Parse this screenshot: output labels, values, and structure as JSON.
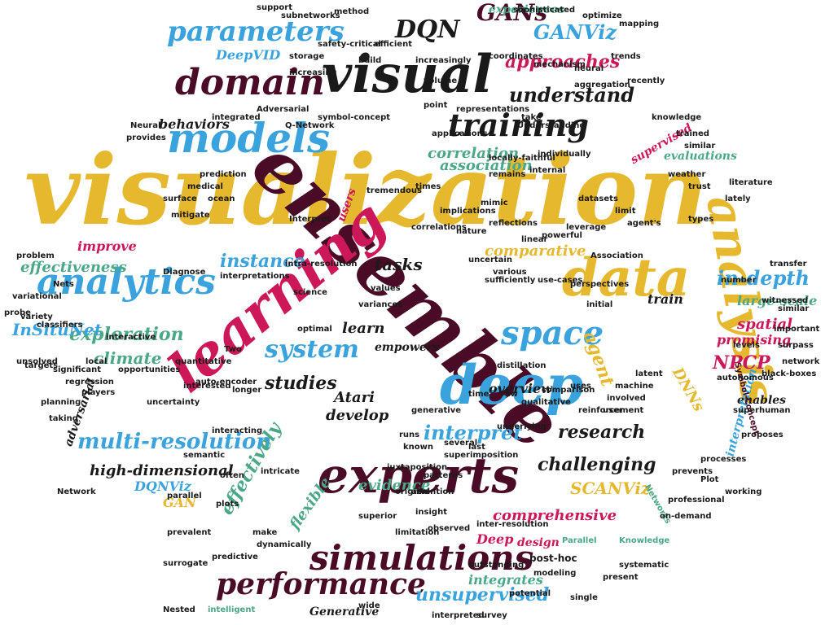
{
  "palette": {
    "gold": "#e6b82e",
    "blue": "#3aa3dd",
    "maroon": "#4a0b26",
    "crimson": "#cc1758",
    "green": "#4aa886",
    "black": "#1a1a1a",
    "olive": "#6b5a12"
  },
  "words": [
    {
      "text": "visualization"
    },
    {
      "text": "ensemble"
    },
    {
      "text": "learning"
    },
    {
      "text": "experts"
    },
    {
      "text": "deep"
    },
    {
      "text": "visual"
    },
    {
      "text": "data"
    },
    {
      "text": "analysis"
    },
    {
      "text": "simulations"
    },
    {
      "text": "models"
    },
    {
      "text": "analytics"
    },
    {
      "text": "domain"
    },
    {
      "text": "performance"
    },
    {
      "text": "parameters"
    },
    {
      "text": "training"
    },
    {
      "text": "space"
    },
    {
      "text": "system"
    },
    {
      "text": "multi-resolution"
    },
    {
      "text": "exploration"
    },
    {
      "text": "instance"
    },
    {
      "text": "understand"
    },
    {
      "text": "studies"
    },
    {
      "text": "interpret"
    },
    {
      "text": "in-depth"
    },
    {
      "text": "DQN"
    },
    {
      "text": "GANs"
    },
    {
      "text": "GANViz"
    },
    {
      "text": "approaches"
    },
    {
      "text": "InSituNet"
    },
    {
      "text": "effectiveness"
    },
    {
      "text": "tasks"
    },
    {
      "text": "research"
    },
    {
      "text": "challenging"
    },
    {
      "text": "behaviors"
    },
    {
      "text": "correlation"
    },
    {
      "text": "association"
    },
    {
      "text": "climate"
    },
    {
      "text": "agent"
    },
    {
      "text": "NPCP"
    },
    {
      "text": "spatial"
    },
    {
      "text": "learn"
    },
    {
      "text": "overview"
    },
    {
      "text": "unsupervised"
    },
    {
      "text": "comprehensive"
    },
    {
      "text": "effectively"
    },
    {
      "text": "evidence"
    },
    {
      "text": "flexible"
    },
    {
      "text": "integrates"
    },
    {
      "text": "SCANViz"
    },
    {
      "text": "high-dimensional"
    },
    {
      "text": "develop"
    },
    {
      "text": "large-scale"
    },
    {
      "text": "promising"
    },
    {
      "text": "supervised"
    },
    {
      "text": "experiences"
    },
    {
      "text": "DQNViz"
    },
    {
      "text": "Atari"
    },
    {
      "text": "adversarial"
    },
    {
      "text": "DNNs"
    },
    {
      "text": "evaluations"
    },
    {
      "text": "enables"
    },
    {
      "text": "empowers"
    },
    {
      "text": "improve"
    },
    {
      "text": "comparative"
    },
    {
      "text": "train"
    },
    {
      "text": "Deep"
    },
    {
      "text": "design"
    },
    {
      "text": "Generative"
    },
    {
      "text": "GAN"
    },
    {
      "text": "interpretation"
    },
    {
      "text": "DeepVID"
    },
    {
      "text": "users"
    },
    {
      "text": "Symbol-Concept"
    },
    {
      "text": "post-hoc"
    },
    {
      "text": "surrogate"
    },
    {
      "text": "Knowledge"
    },
    {
      "text": "Parallel"
    },
    {
      "text": "Networks"
    },
    {
      "text": "Network"
    },
    {
      "text": "wide"
    },
    {
      "text": "Nested"
    },
    {
      "text": "intelligent"
    },
    {
      "text": "interpreted"
    },
    {
      "text": "survey"
    },
    {
      "text": "single"
    },
    {
      "text": "potential"
    },
    {
      "text": "outstanding"
    },
    {
      "text": "modeling"
    },
    {
      "text": "systematic"
    },
    {
      "text": "present"
    },
    {
      "text": "on-demand"
    },
    {
      "text": "working"
    },
    {
      "text": "superior"
    },
    {
      "text": "juxtaposition"
    },
    {
      "text": "superimposition"
    },
    {
      "text": "patterns"
    },
    {
      "text": "original"
    },
    {
      "text": "attention"
    },
    {
      "text": "plots"
    },
    {
      "text": "semantic"
    },
    {
      "text": "parallel"
    },
    {
      "text": "prevalent"
    },
    {
      "text": "planning"
    },
    {
      "text": "players"
    },
    {
      "text": "taking"
    },
    {
      "text": "regression"
    },
    {
      "text": "significant"
    },
    {
      "text": "targets"
    },
    {
      "text": "probe"
    },
    {
      "text": "variety"
    },
    {
      "text": "classifiers"
    },
    {
      "text": "local"
    },
    {
      "text": "interactive"
    },
    {
      "text": "Diagnose"
    },
    {
      "text": "interpretations"
    },
    {
      "text": "intra-resolution"
    },
    {
      "text": "science"
    },
    {
      "text": "values"
    },
    {
      "text": "variances"
    },
    {
      "text": "uncertain"
    },
    {
      "text": "various"
    },
    {
      "text": "use-cases"
    },
    {
      "text": "sufficiently"
    },
    {
      "text": "Association"
    },
    {
      "text": "perspectives"
    },
    {
      "text": "initial"
    },
    {
      "text": "number"
    },
    {
      "text": "transfer"
    },
    {
      "text": "witnessed"
    },
    {
      "text": "similar"
    },
    {
      "text": "important"
    },
    {
      "text": "surpass"
    },
    {
      "text": "levels"
    },
    {
      "text": "network"
    },
    {
      "text": "black-boxes"
    },
    {
      "text": "autonomous"
    },
    {
      "text": "superhuman"
    },
    {
      "text": "proposes"
    },
    {
      "text": "processes"
    },
    {
      "text": "Plot"
    },
    {
      "text": "professional"
    },
    {
      "text": "prevents"
    },
    {
      "text": "machine"
    },
    {
      "text": "involved"
    },
    {
      "text": "user"
    },
    {
      "text": "uses"
    },
    {
      "text": "comparison"
    },
    {
      "text": "distillation"
    },
    {
      "text": "inter-resolution"
    },
    {
      "text": "dynamically"
    },
    {
      "text": "make"
    },
    {
      "text": "runs"
    },
    {
      "text": "limitation"
    },
    {
      "text": "insight"
    },
    {
      "text": "predictive"
    },
    {
      "text": "often"
    },
    {
      "text": "interacting"
    },
    {
      "text": "longer"
    },
    {
      "text": "unsolved"
    },
    {
      "text": "opportunities"
    },
    {
      "text": "uncertainty"
    },
    {
      "text": "intricate"
    },
    {
      "text": "optimal"
    },
    {
      "text": "interested"
    },
    {
      "text": "quantitative"
    },
    {
      "text": "qualitative"
    },
    {
      "text": "auto-encoder"
    },
    {
      "text": "Two"
    },
    {
      "text": "reinforcement"
    },
    {
      "text": "latent"
    },
    {
      "text": "generative"
    },
    {
      "text": "several"
    },
    {
      "text": "known"
    },
    {
      "text": "underlying"
    },
    {
      "text": "time"
    },
    {
      "text": "raw"
    },
    {
      "text": "observed"
    },
    {
      "text": "last"
    },
    {
      "text": "Interpret"
    },
    {
      "text": "tremendous"
    },
    {
      "text": "correlations"
    },
    {
      "text": "implications"
    },
    {
      "text": "nature"
    },
    {
      "text": "reflections"
    },
    {
      "text": "linear"
    },
    {
      "text": "powerful"
    },
    {
      "text": "leverage"
    },
    {
      "text": "mimic"
    },
    {
      "text": "internal"
    },
    {
      "text": "remains"
    },
    {
      "text": "datasets"
    },
    {
      "text": "limit"
    },
    {
      "text": "agent's"
    },
    {
      "text": "types"
    },
    {
      "text": "lately"
    },
    {
      "text": "literature"
    },
    {
      "text": "weather"
    },
    {
      "text": "trust"
    },
    {
      "text": "individually"
    },
    {
      "text": "trained"
    },
    {
      "text": "similar"
    },
    {
      "text": "knowledge"
    },
    {
      "text": "recently"
    },
    {
      "text": "aggregation"
    },
    {
      "text": "neural"
    },
    {
      "text": "take"
    },
    {
      "text": "representations"
    },
    {
      "text": "Understanding"
    },
    {
      "text": "applications"
    },
    {
      "text": "symbol-concept"
    },
    {
      "text": "Q-Network"
    },
    {
      "text": "Adversarial"
    },
    {
      "text": "integrated"
    },
    {
      "text": "point"
    },
    {
      "text": "locally-faithful"
    },
    {
      "text": "medical"
    },
    {
      "text": "surface"
    },
    {
      "text": "ocean"
    },
    {
      "text": "prediction"
    },
    {
      "text": "mitigate"
    },
    {
      "text": "times"
    },
    {
      "text": "Neural"
    },
    {
      "text": "provides"
    },
    {
      "text": "Nets"
    },
    {
      "text": "problem"
    },
    {
      "text": "variational"
    },
    {
      "text": "mechanism"
    },
    {
      "text": "coordinates"
    },
    {
      "text": "increasingly"
    },
    {
      "text": "volume"
    },
    {
      "text": "trends"
    },
    {
      "text": "mapping"
    },
    {
      "text": "optimize"
    },
    {
      "text": "sophisticated"
    },
    {
      "text": "method"
    },
    {
      "text": "subnetworks"
    },
    {
      "text": "support"
    },
    {
      "text": "storage"
    },
    {
      "text": "increasing"
    },
    {
      "text": "safety-critical"
    },
    {
      "text": "efficient"
    },
    {
      "text": "build"
    }
  ]
}
